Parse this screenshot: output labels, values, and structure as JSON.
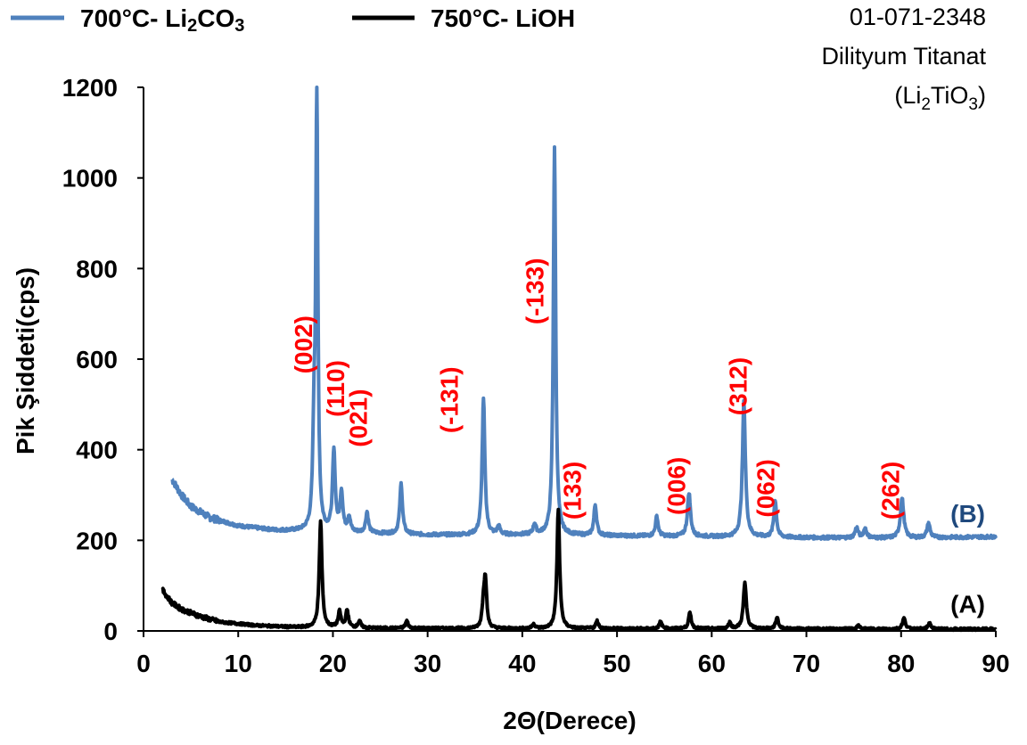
{
  "legend": {
    "items": [
      {
        "prefix": "700°C- Li",
        "s1": "2",
        "mid": "CO",
        "s2": "3",
        "color": "#4f81bd"
      },
      {
        "prefix": "750°C- LiOH",
        "s1": "",
        "mid": "",
        "s2": "",
        "color": "#000000"
      }
    ]
  },
  "reference": {
    "line1": "01-071-2348",
    "line2": "Dilityum Titanat",
    "formula": {
      "open": "(Li",
      "s1": "2",
      "mid": "TiO",
      "s2": "3",
      "close": ")"
    }
  },
  "chart_data": {
    "type": "line",
    "xlabel": "2Θ(Derece)",
    "ylabel": "Pik Şiddeti(cps)",
    "xlim": [
      0,
      90
    ],
    "ylim": [
      0,
      1200
    ],
    "xticks": [
      0,
      10,
      20,
      30,
      40,
      50,
      60,
      70,
      80,
      90
    ],
    "yticks": [
      0,
      200,
      400,
      600,
      800,
      1000,
      1200
    ],
    "grid": false,
    "legend_position": "top-left",
    "series": [
      {
        "name": "700°C- Li2CO3",
        "label": "(B)",
        "color": "#4f81bd",
        "baseline": [
          [
            3,
            335
          ],
          [
            4,
            300
          ],
          [
            5,
            275
          ],
          [
            7,
            250
          ],
          [
            10,
            232
          ],
          [
            14,
            222
          ],
          [
            20,
            218
          ],
          [
            30,
            212
          ],
          [
            40,
            212
          ],
          [
            50,
            210
          ],
          [
            60,
            208
          ],
          [
            70,
            206
          ],
          [
            80,
            205
          ],
          [
            90,
            208
          ]
        ],
        "peaks": [
          {
            "x": 18.0,
            "y": 410,
            "w": 0.15
          },
          {
            "x": 18.3,
            "y": 1200,
            "w": 0.13
          },
          {
            "x": 20.1,
            "y": 395,
            "w": 0.17
          },
          {
            "x": 20.9,
            "y": 305,
            "w": 0.17
          },
          {
            "x": 21.7,
            "y": 250,
            "w": 0.17
          },
          {
            "x": 23.6,
            "y": 262,
            "w": 0.17
          },
          {
            "x": 27.2,
            "y": 325,
            "w": 0.17
          },
          {
            "x": 35.9,
            "y": 512,
            "w": 0.17
          },
          {
            "x": 37.5,
            "y": 230,
            "w": 0.17
          },
          {
            "x": 41.3,
            "y": 235,
            "w": 0.17
          },
          {
            "x": 43.4,
            "y": 1065,
            "w": 0.15
          },
          {
            "x": 47.7,
            "y": 278,
            "w": 0.17
          },
          {
            "x": 54.2,
            "y": 253,
            "w": 0.17
          },
          {
            "x": 57.6,
            "y": 305,
            "w": 0.19
          },
          {
            "x": 63.4,
            "y": 505,
            "w": 0.19
          },
          {
            "x": 66.7,
            "y": 288,
            "w": 0.17
          },
          {
            "x": 75.3,
            "y": 228,
            "w": 0.19
          },
          {
            "x": 76.2,
            "y": 226,
            "w": 0.19
          },
          {
            "x": 80.1,
            "y": 293,
            "w": 0.21
          },
          {
            "x": 82.9,
            "y": 238,
            "w": 0.19
          }
        ]
      },
      {
        "name": "750°C- LiOH",
        "label": "(A)",
        "color": "#000000",
        "baseline": [
          [
            2,
            90
          ],
          [
            3,
            62
          ],
          [
            4,
            48
          ],
          [
            6,
            32
          ],
          [
            8,
            20
          ],
          [
            12,
            12
          ],
          [
            16,
            8
          ],
          [
            25,
            6
          ],
          [
            40,
            5
          ],
          [
            60,
            5
          ],
          [
            80,
            4
          ],
          [
            90,
            4
          ]
        ],
        "peaks": [
          {
            "x": 18.7,
            "y": 242,
            "w": 0.17
          },
          {
            "x": 20.7,
            "y": 42,
            "w": 0.17
          },
          {
            "x": 21.5,
            "y": 45,
            "w": 0.17
          },
          {
            "x": 22.8,
            "y": 22,
            "w": 0.17
          },
          {
            "x": 27.8,
            "y": 22,
            "w": 0.17
          },
          {
            "x": 35.9,
            "y": 55,
            "w": 0.17
          },
          {
            "x": 36.1,
            "y": 105,
            "w": 0.16
          },
          {
            "x": 41.2,
            "y": 15,
            "w": 0.17
          },
          {
            "x": 43.8,
            "y": 268,
            "w": 0.17
          },
          {
            "x": 47.9,
            "y": 22,
            "w": 0.17
          },
          {
            "x": 54.6,
            "y": 20,
            "w": 0.17
          },
          {
            "x": 57.7,
            "y": 40,
            "w": 0.17
          },
          {
            "x": 61.9,
            "y": 18,
            "w": 0.17
          },
          {
            "x": 63.5,
            "y": 105,
            "w": 0.19
          },
          {
            "x": 66.9,
            "y": 30,
            "w": 0.17
          },
          {
            "x": 75.5,
            "y": 12,
            "w": 0.17
          },
          {
            "x": 80.3,
            "y": 28,
            "w": 0.19
          },
          {
            "x": 83.0,
            "y": 18,
            "w": 0.17
          }
        ]
      }
    ],
    "annotations": [
      {
        "text": "(002)",
        "x": 17.8,
        "y": 632
      },
      {
        "text": "(110)",
        "x": 21.2,
        "y": 535
      },
      {
        "text": "(021)",
        "x": 23.6,
        "y": 470
      },
      {
        "text": "(-131)",
        "x": 33.2,
        "y": 510
      },
      {
        "text": "(-133)",
        "x": 42.2,
        "y": 750
      },
      {
        "text": "(133)",
        "x": 46.2,
        "y": 310
      },
      {
        "text": "(006)",
        "x": 57.2,
        "y": 320
      },
      {
        "text": "(312)",
        "x": 63.7,
        "y": 540
      },
      {
        "text": "(062)",
        "x": 66.6,
        "y": 315
      },
      {
        "text": "(262)",
        "x": 79.8,
        "y": 310
      }
    ]
  }
}
